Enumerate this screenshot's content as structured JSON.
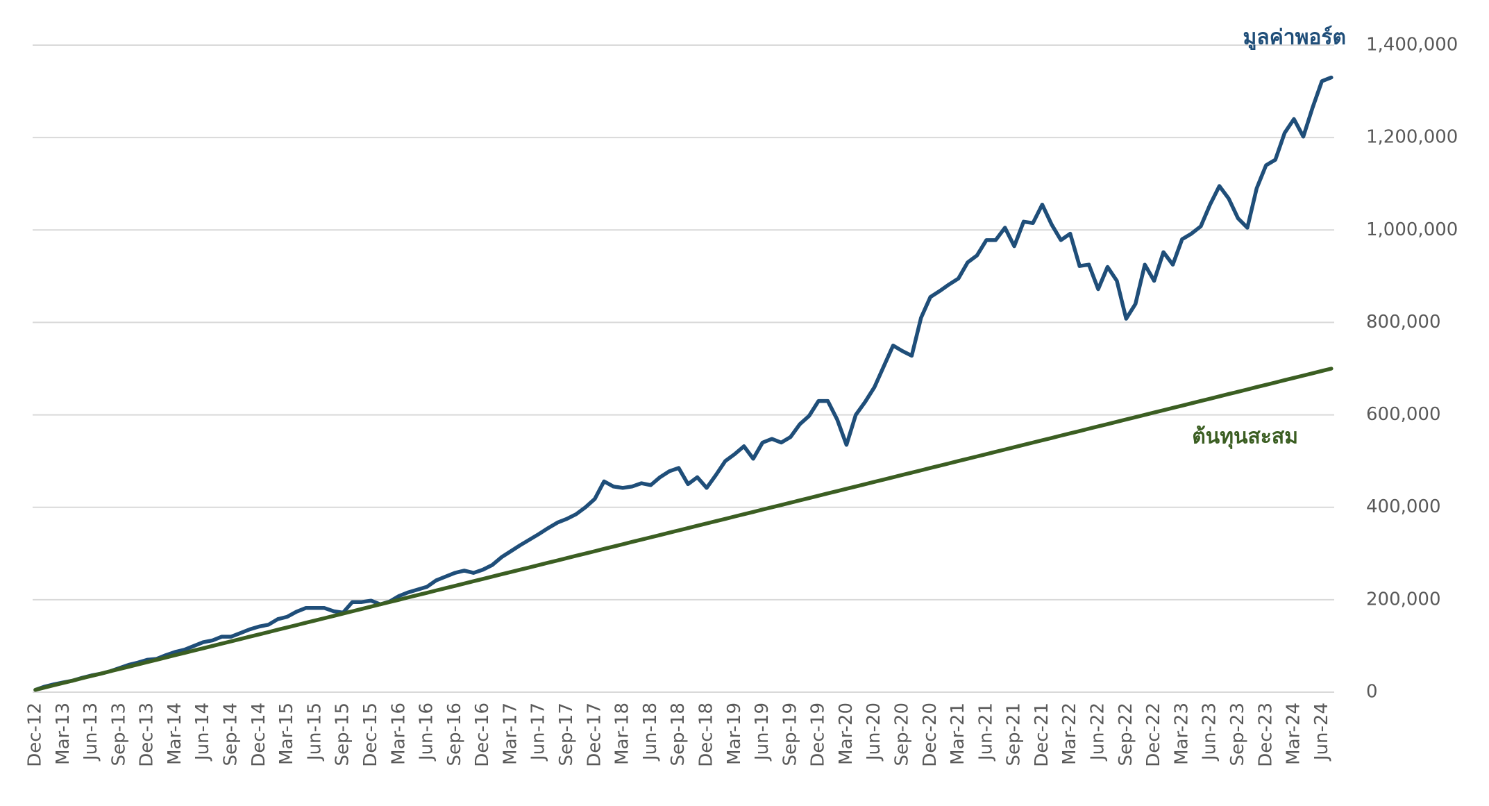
{
  "chart_data": {
    "type": "line",
    "categories": [
      "Dec-12",
      null,
      null,
      "Mar-13",
      null,
      null,
      "Jun-13",
      null,
      null,
      "Sep-13",
      null,
      null,
      "Dec-13",
      null,
      null,
      "Mar-14",
      null,
      null,
      "Jun-14",
      null,
      null,
      "Sep-14",
      null,
      null,
      "Dec-14",
      null,
      null,
      "Mar-15",
      null,
      null,
      "Jun-15",
      null,
      null,
      "Sep-15",
      null,
      null,
      "Dec-15",
      null,
      null,
      "Mar-16",
      null,
      null,
      "Jun-16",
      null,
      null,
      "Sep-16",
      null,
      null,
      "Dec-16",
      null,
      null,
      "Mar-17",
      null,
      null,
      "Jun-17",
      null,
      null,
      "Sep-17",
      null,
      null,
      "Dec-17",
      null,
      null,
      "Mar-18",
      null,
      null,
      "Jun-18",
      null,
      null,
      "Sep-18",
      null,
      null,
      "Dec-18",
      null,
      null,
      "Mar-19",
      null,
      null,
      "Jun-19",
      null,
      null,
      "Sep-19",
      null,
      null,
      "Dec-19",
      null,
      null,
      "Mar-20",
      null,
      null,
      "Jun-20",
      null,
      null,
      "Sep-20",
      null,
      null,
      "Dec-20",
      null,
      null,
      "Mar-21",
      null,
      null,
      "Jun-21",
      null,
      null,
      "Sep-21",
      null,
      null,
      "Dec-21",
      null,
      null,
      "Mar-22",
      null,
      null,
      "Jun-22",
      null,
      null,
      "Sep-22",
      null,
      null,
      "Dec-22",
      null,
      null,
      "Mar-23",
      null,
      null,
      "Jun-23",
      null,
      null,
      "Sep-23",
      null,
      null,
      "Dec-23",
      null,
      null,
      "Mar-24",
      null,
      null,
      "Jun-24",
      null
    ],
    "series": [
      {
        "name": "มูลค่าพอร์ต",
        "color": "#1f4e79",
        "values": [
          5000,
          12000,
          17000,
          21000,
          25000,
          31000,
          36000,
          40000,
          45000,
          52000,
          59000,
          64000,
          70000,
          72000,
          80000,
          87000,
          92000,
          100000,
          108000,
          112000,
          120000,
          120000,
          128000,
          136000,
          142000,
          146000,
          158000,
          163000,
          174000,
          182000,
          182000,
          182000,
          175000,
          172000,
          195000,
          195000,
          198000,
          190000,
          196000,
          208000,
          216000,
          222000,
          228000,
          242000,
          250000,
          258000,
          263000,
          258000,
          265000,
          275000,
          292000,
          305000,
          318000,
          330000,
          342000,
          355000,
          367000,
          375000,
          385000,
          400000,
          418000,
          456000,
          445000,
          442000,
          445000,
          452000,
          448000,
          465000,
          478000,
          485000,
          450000,
          465000,
          442000,
          470000,
          500000,
          515000,
          532000,
          505000,
          540000,
          548000,
          540000,
          552000,
          580000,
          598000,
          630000,
          630000,
          590000,
          535000,
          600000,
          628000,
          660000,
          705000,
          750000,
          738000,
          728000,
          810000,
          855000,
          868000,
          882000,
          895000,
          930000,
          945000,
          978000,
          978000,
          1005000,
          965000,
          1018000,
          1015000,
          1055000,
          1012000,
          978000,
          992000,
          922000,
          925000,
          872000,
          920000,
          890000,
          808000,
          840000,
          925000,
          890000,
          952000,
          925000,
          980000,
          992000,
          1008000,
          1055000,
          1095000,
          1068000,
          1025000,
          1005000,
          1090000,
          1140000,
          1152000,
          1210000,
          1240000,
          1202000,
          1265000,
          1322000,
          1330000
        ]
      },
      {
        "name": "ต้นทุนสะสม",
        "color": "#3b5e22",
        "values": [
          5000,
          10000,
          15000,
          20000,
          25000,
          30000,
          35000,
          40000,
          45000,
          50000,
          55000,
          60000,
          65000,
          70000,
          75000,
          80000,
          85000,
          90000,
          95000,
          100000,
          105000,
          110000,
          115000,
          120000,
          125000,
          130000,
          135000,
          140000,
          145000,
          150000,
          155000,
          160000,
          165000,
          170000,
          175000,
          180000,
          185000,
          190000,
          195000,
          200000,
          205000,
          210000,
          215000,
          220000,
          225000,
          230000,
          235000,
          240000,
          245000,
          250000,
          255000,
          260000,
          265000,
          270000,
          275000,
          280000,
          285000,
          290000,
          295000,
          300000,
          305000,
          310000,
          315000,
          320000,
          325000,
          330000,
          335000,
          340000,
          345000,
          350000,
          355000,
          360000,
          365000,
          370000,
          375000,
          380000,
          385000,
          390000,
          395000,
          400000,
          405000,
          410000,
          415000,
          420000,
          425000,
          430000,
          435000,
          440000,
          445000,
          450000,
          455000,
          460000,
          465000,
          470000,
          475000,
          480000,
          485000,
          490000,
          495000,
          500000,
          505000,
          510000,
          515000,
          520000,
          525000,
          530000,
          535000,
          540000,
          545000,
          550000,
          555000,
          560000,
          565000,
          570000,
          575000,
          580000,
          585000,
          590000,
          595000,
          600000,
          605000,
          610000,
          615000,
          620000,
          625000,
          630000,
          635000,
          640000,
          645000,
          650000,
          655000,
          660000,
          665000,
          670000,
          675000,
          680000,
          685000,
          690000,
          695000,
          700000
        ]
      }
    ],
    "ylim": [
      0,
      1400000
    ],
    "yticks": [
      0,
      {
        "value": 200000,
        "label": "200,000"
      },
      {
        "value": 400000,
        "label": "400,000"
      },
      {
        "value": 600000,
        "label": "600,000"
      },
      {
        "value": 800000,
        "label": "800,000"
      },
      {
        "value": 1000000,
        "label": "1,000,000"
      },
      {
        "value": 1200000,
        "label": "1,200,000"
      },
      {
        "value": 1400000,
        "label": "1,400,000"
      }
    ],
    "grid": true
  }
}
